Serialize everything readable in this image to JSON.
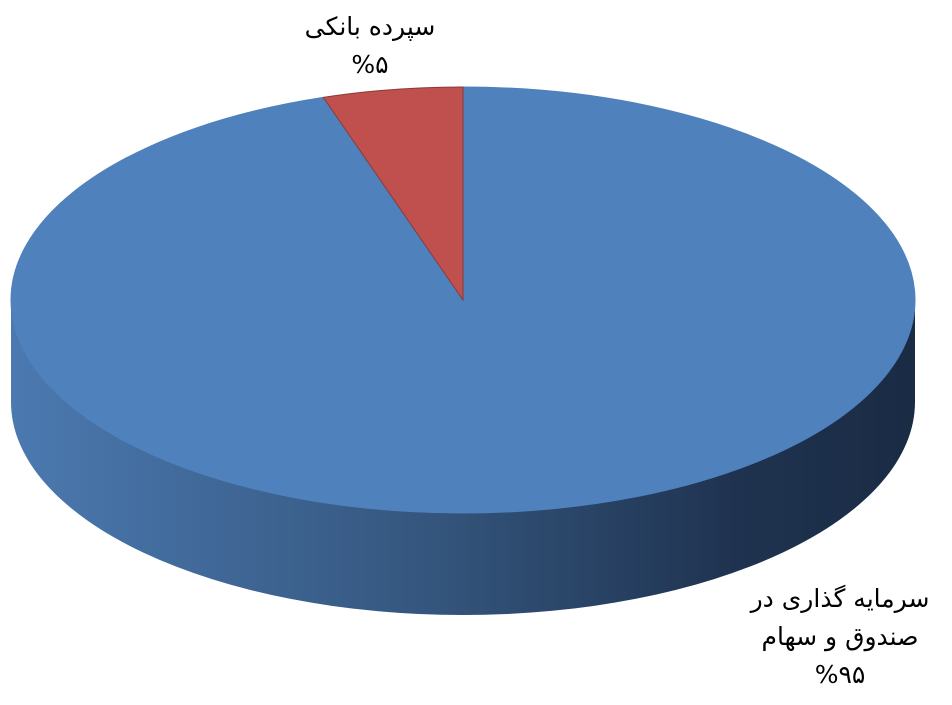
{
  "chart_data": {
    "type": "pie",
    "title": "",
    "slices": [
      {
        "label_lines": [
          "سپرده بانکی"
        ],
        "value": 5,
        "value_label": "%۵",
        "color": "#C0504D"
      },
      {
        "label_lines": [
          "سرمایه گذاری در",
          "صندوق و سهام"
        ],
        "value": 95,
        "value_label": "%۹۵",
        "color": "#4F81BD"
      }
    ],
    "style": "3d",
    "legend": "none"
  }
}
